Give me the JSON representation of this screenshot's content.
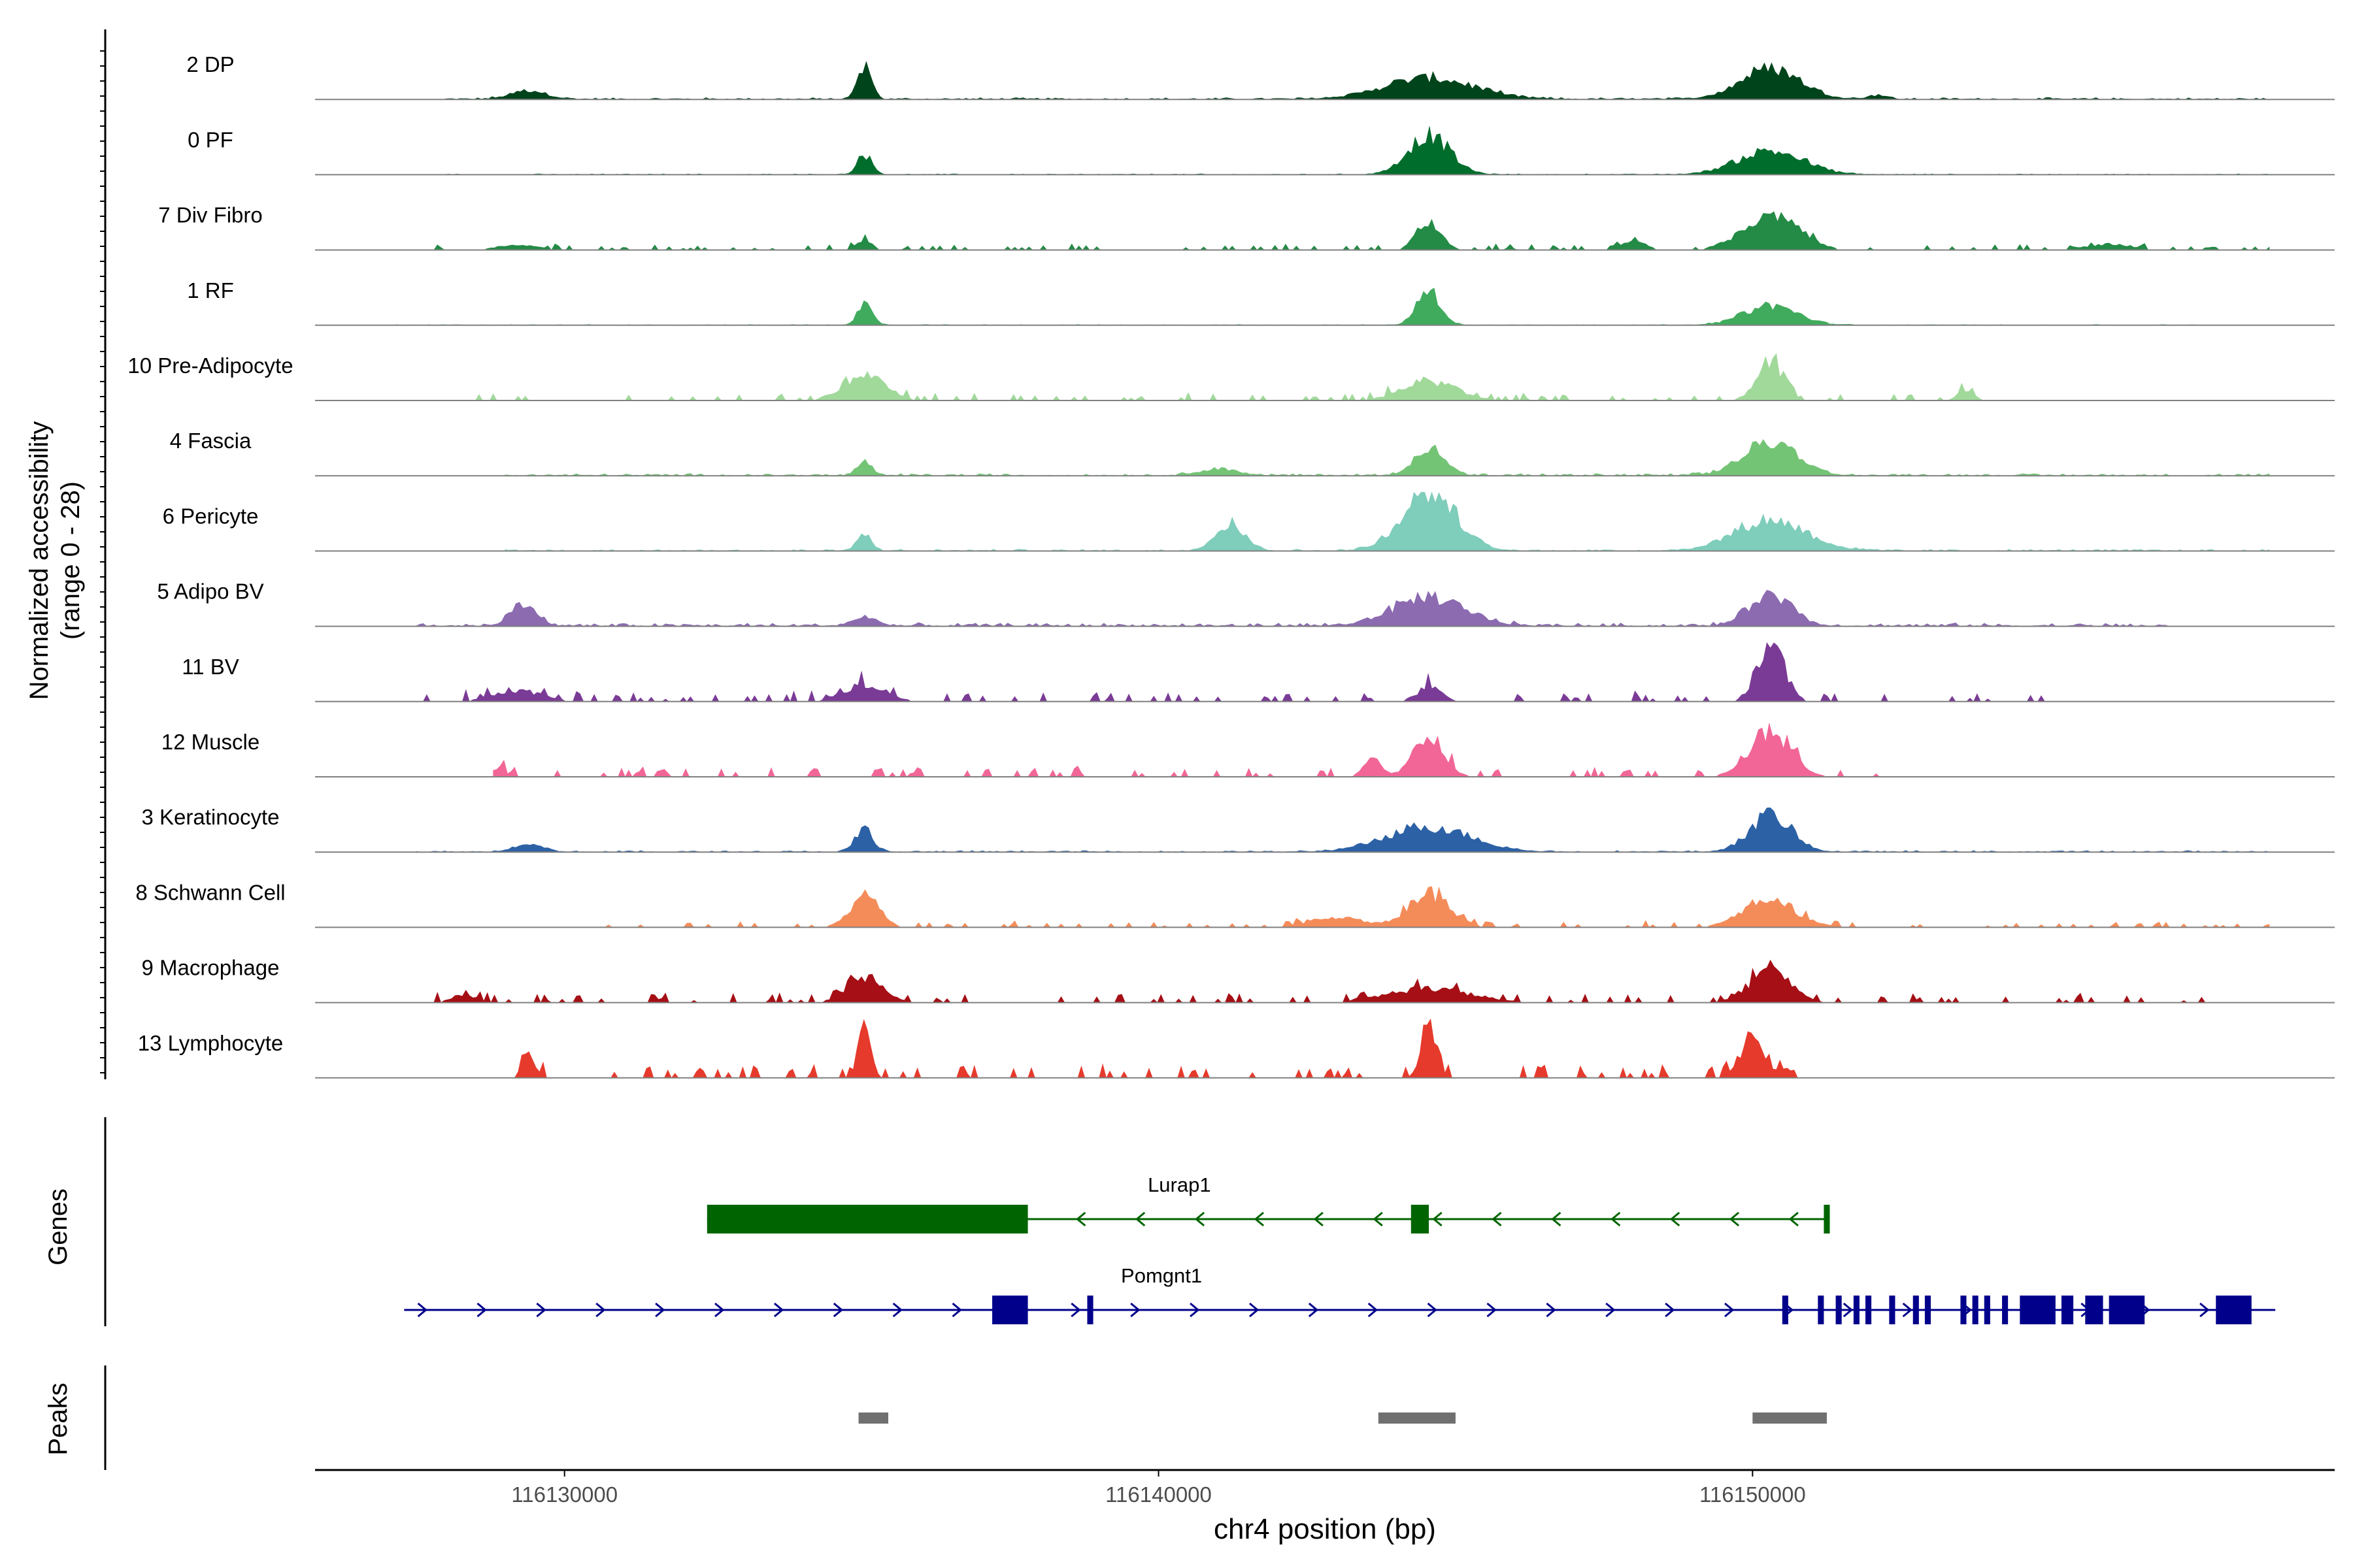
{
  "chart_data": {
    "type": "area",
    "title": "",
    "ylabel_line1": "Normalized accessibility",
    "ylabel_line2": "(range 0 - 28)",
    "xlabel": "chr4 position (bp)",
    "y_range": [
      0,
      28
    ],
    "x_range": [
      116125800,
      116159800
    ],
    "x_ticks": [
      116130000,
      116140000,
      116150000
    ],
    "x_tick_labels": [
      "116130000",
      "116140000",
      "116150000"
    ],
    "peak_centers": [
      116135050,
      116144550,
      116150300
    ],
    "tracks": [
      {
        "name": "2 DP",
        "color": "#00441b",
        "peaks": [
          [
            116129400,
            6,
            600
          ],
          [
            116135050,
            24,
            220
          ],
          [
            116144550,
            15,
            1500
          ],
          [
            116150300,
            22,
            1000
          ],
          [
            116152100,
            3,
            300
          ]
        ],
        "noise": 1.2,
        "dense": true,
        "start": 116128000,
        "end": 116158700
      },
      {
        "name": "0 PF",
        "color": "#006d2c",
        "peaks": [
          [
            116135050,
            14,
            250
          ],
          [
            116144550,
            28,
            700
          ],
          [
            116150300,
            17,
            1100
          ]
        ],
        "noise": 0.6,
        "dense": true,
        "start": 116128000,
        "end": 116158700
      },
      {
        "name": "7 Div Fibro",
        "color": "#238b45",
        "peaks": [
          [
            116129200,
            3,
            800
          ],
          [
            116135050,
            8,
            250
          ],
          [
            116144550,
            20,
            400
          ],
          [
            116150300,
            26,
            900
          ],
          [
            116148000,
            6,
            400
          ],
          [
            116156000,
            4,
            800
          ]
        ],
        "noise": 2.5,
        "dense": false,
        "start": 116127800,
        "end": 116158700
      },
      {
        "name": "1 RF",
        "color": "#41ab5d",
        "peaks": [
          [
            116135050,
            14,
            250
          ],
          [
            116144550,
            24,
            400
          ],
          [
            116150300,
            14,
            900
          ]
        ],
        "noise": 0.5,
        "dense": true,
        "start": 116127000,
        "end": 116158700
      },
      {
        "name": "10 Pre-Adipocyte",
        "color": "#a1d99b",
        "peaks": [
          [
            116135050,
            18,
            700
          ],
          [
            116144550,
            14,
            900
          ],
          [
            116150300,
            28,
            450
          ],
          [
            116153600,
            6,
            300
          ]
        ],
        "noise": 3.5,
        "dense": false,
        "start": 116128500,
        "end": 116154000
      },
      {
        "name": "4 Fascia",
        "color": "#74c476",
        "peaks": [
          [
            116135050,
            10,
            250
          ],
          [
            116144550,
            20,
            500
          ],
          [
            116150300,
            24,
            900
          ],
          [
            116141000,
            5,
            600
          ]
        ],
        "noise": 1.5,
        "dense": true,
        "start": 116129000,
        "end": 116158700
      },
      {
        "name": "6 Pericyte",
        "color": "#7fcdbb",
        "peaks": [
          [
            116135050,
            11,
            250
          ],
          [
            116141200,
            20,
            500
          ],
          [
            116144550,
            42,
            900
          ],
          [
            116150300,
            22,
            1200
          ]
        ],
        "noise": 1.2,
        "dense": true,
        "start": 116129000,
        "end": 116158700
      },
      {
        "name": "5 Adipo BV",
        "color": "#8c6bb1",
        "peaks": [
          [
            116129300,
            14,
            450
          ],
          [
            116135050,
            6,
            400
          ],
          [
            116144550,
            20,
            1200
          ],
          [
            116150300,
            22,
            700
          ]
        ],
        "noise": 2.2,
        "dense": true,
        "start": 116127500,
        "end": 116157000
      },
      {
        "name": "11 BV",
        "color": "#7a3b96",
        "peaks": [
          [
            116129200,
            8,
            800
          ],
          [
            116135050,
            12,
            700
          ],
          [
            116144550,
            10,
            400
          ],
          [
            116150300,
            42,
            450
          ]
        ],
        "noise": 4.5,
        "dense": false,
        "start": 116127500,
        "end": 116155200
      },
      {
        "name": "12 Muscle",
        "color": "#f16697",
        "peaks": [
          [
            116128900,
            7,
            200
          ],
          [
            116144550,
            30,
            500
          ],
          [
            116143600,
            12,
            300
          ],
          [
            116150300,
            32,
            700
          ]
        ],
        "noise": 4.5,
        "dense": false,
        "start": 116128800,
        "end": 116152200
      },
      {
        "name": "3 Keratinocyte",
        "color": "#2c61a5",
        "peaks": [
          [
            116129400,
            5,
            500
          ],
          [
            116135050,
            16,
            300
          ],
          [
            116144550,
            18,
            1400
          ],
          [
            116150300,
            26,
            700
          ]
        ],
        "noise": 1.0,
        "dense": true,
        "start": 116127500,
        "end": 116158700
      },
      {
        "name": "8 Schwann Cell",
        "color": "#f48c5a",
        "peaks": [
          [
            116135050,
            22,
            500
          ],
          [
            116144550,
            24,
            700
          ],
          [
            116143000,
            7,
            900
          ],
          [
            116150300,
            18,
            900
          ]
        ],
        "noise": 2.8,
        "dense": false,
        "start": 116130500,
        "end": 116158700
      },
      {
        "name": "9 Macrophage",
        "color": "#a50f15",
        "peaks": [
          [
            116128300,
            6,
            400
          ],
          [
            116135050,
            18,
            600
          ],
          [
            116144550,
            10,
            1400
          ],
          [
            116150300,
            22,
            700
          ]
        ],
        "noise": 4.0,
        "dense": false,
        "start": 116127500,
        "end": 116158000
      },
      {
        "name": "13 Lymphocyte",
        "color": "#e63a2c",
        "peaks": [
          [
            116129400,
            20,
            200
          ],
          [
            116135050,
            38,
            200
          ],
          [
            116144550,
            40,
            250
          ],
          [
            116150000,
            30,
            400
          ]
        ],
        "noise": 6.0,
        "dense": false,
        "start": 116128800,
        "end": 116151000
      }
    ],
    "genes_label": "Genes",
    "genes": [
      {
        "name": "Lurap1",
        "color": "#006400",
        "strand": "-",
        "start": 116132400,
        "end": 116151300,
        "exons": [
          [
            116132400,
            116137800,
            "thick"
          ],
          [
            116144250,
            116144550,
            "thick"
          ],
          [
            116151200,
            116151300,
            "thick"
          ]
        ]
      },
      {
        "name": "Pomgnt1",
        "color": "#00008b",
        "strand": "+",
        "start": 116127300,
        "end": 116158800,
        "exons": [
          [
            116137200,
            116137800,
            "thick"
          ],
          [
            116138800,
            116138900,
            "thick"
          ],
          [
            116150500,
            116150600,
            "thick"
          ],
          [
            116151100,
            116151200,
            "thick"
          ],
          [
            116151400,
            116151500,
            "thick"
          ],
          [
            116151700,
            116151800,
            "thick"
          ],
          [
            116151900,
            116152000,
            "thick"
          ],
          [
            116152300,
            116152400,
            "thick"
          ],
          [
            116152700,
            116152800,
            "thick"
          ],
          [
            116152900,
            116153000,
            "thick"
          ],
          [
            116153500,
            116153600,
            "thick"
          ],
          [
            116153700,
            116153800,
            "thick"
          ],
          [
            116153900,
            116154000,
            "thick"
          ],
          [
            116154200,
            116154300,
            "thick"
          ],
          [
            116154500,
            116155100,
            "thick"
          ],
          [
            116155200,
            116155400,
            "thick"
          ],
          [
            116155600,
            116155900,
            "thick"
          ],
          [
            116156000,
            116156600,
            "thick"
          ],
          [
            116157800,
            116158400,
            "thick"
          ]
        ]
      }
    ],
    "peaks_label": "Peaks",
    "peak_regions": [
      [
        116134950,
        116135450
      ],
      [
        116143700,
        116145000
      ],
      [
        116150000,
        116151250
      ]
    ]
  }
}
